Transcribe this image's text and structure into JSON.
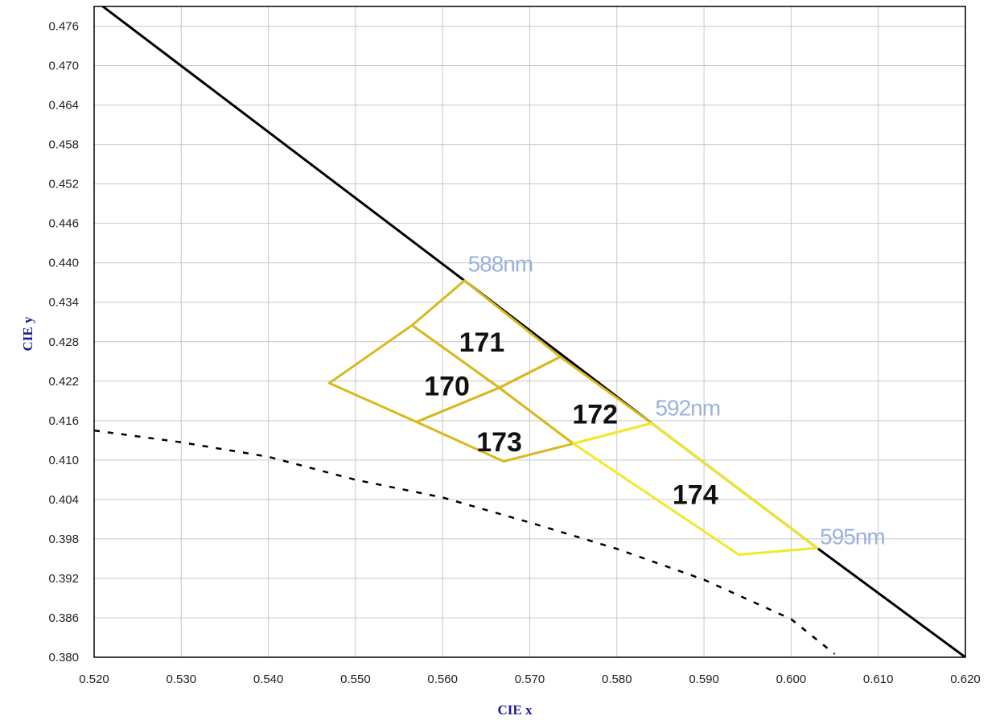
{
  "chart_data": {
    "type": "line",
    "title": "",
    "xlabel": "CIE x",
    "ylabel": "CIE y",
    "xlim": [
      0.52,
      0.62
    ],
    "ylim": [
      0.38,
      0.479
    ],
    "x_ticks": [
      "0.520",
      "0.530",
      "0.540",
      "0.550",
      "0.560",
      "0.570",
      "0.580",
      "0.590",
      "0.600",
      "0.610",
      "0.620"
    ],
    "y_ticks": [
      "0.380",
      "0.386",
      "0.392",
      "0.398",
      "0.404",
      "0.410",
      "0.416",
      "0.422",
      "0.428",
      "0.434",
      "0.440",
      "0.446",
      "0.452",
      "0.458",
      "0.464",
      "0.470",
      "0.476"
    ],
    "grid": true,
    "colors": {
      "locus": "#000000",
      "planckian": "#000000",
      "region_dark": "#d9b91e",
      "region_light": "#f0ea2a",
      "wavelength_label": "#9ab3de",
      "axis_title": "#1a1aa0"
    },
    "series": [
      {
        "name": "spectral locus",
        "style": "solid",
        "points": [
          [
            0.5205,
            0.4795
          ],
          [
            0.5625,
            0.4373
          ],
          [
            0.584,
            0.4156
          ],
          [
            0.603,
            0.3966
          ],
          [
            0.62,
            0.38
          ]
        ]
      },
      {
        "name": "planckian locus",
        "style": "dashed",
        "points": [
          [
            0.52,
            0.4145
          ],
          [
            0.53,
            0.4127
          ],
          [
            0.54,
            0.4105
          ],
          [
            0.55,
            0.407
          ],
          [
            0.56,
            0.4043
          ],
          [
            0.57,
            0.4005
          ],
          [
            0.58,
            0.3965
          ],
          [
            0.59,
            0.3918
          ],
          [
            0.6,
            0.3858
          ],
          [
            0.605,
            0.3805
          ]
        ]
      }
    ],
    "regions": [
      {
        "label": "170",
        "tone": "dark",
        "points": [
          [
            0.547,
            0.4217
          ],
          [
            0.5565,
            0.4305
          ],
          [
            0.5665,
            0.421
          ],
          [
            0.557,
            0.4158
          ]
        ],
        "label_at": [
          0.5605,
          0.4213
        ]
      },
      {
        "label": "171",
        "tone": "dark",
        "points": [
          [
            0.5565,
            0.4305
          ],
          [
            0.5625,
            0.4373
          ],
          [
            0.5735,
            0.4257
          ],
          [
            0.5665,
            0.421
          ]
        ],
        "label_at": [
          0.5645,
          0.428
        ]
      },
      {
        "label": "172",
        "tone": "dark",
        "points": [
          [
            0.5665,
            0.421
          ],
          [
            0.5735,
            0.4257
          ],
          [
            0.584,
            0.4156
          ],
          [
            0.575,
            0.4125
          ]
        ],
        "label_at": [
          0.5775,
          0.417
        ]
      },
      {
        "label": "173",
        "tone": "dark",
        "points": [
          [
            0.557,
            0.4158
          ],
          [
            0.5665,
            0.421
          ],
          [
            0.575,
            0.4125
          ],
          [
            0.567,
            0.4098
          ]
        ],
        "label_at": [
          0.5665,
          0.4128
        ]
      },
      {
        "label": "174",
        "tone": "light",
        "points": [
          [
            0.575,
            0.4125
          ],
          [
            0.584,
            0.4156
          ],
          [
            0.603,
            0.3966
          ],
          [
            0.594,
            0.3956
          ]
        ],
        "label_at": [
          0.589,
          0.4048
        ]
      }
    ],
    "annotations": [
      {
        "text": "588nm",
        "x": 0.5629,
        "y": 0.4387
      },
      {
        "text": "592nm",
        "x": 0.5844,
        "y": 0.4168
      },
      {
        "text": "595nm",
        "x": 0.6033,
        "y": 0.3972
      }
    ]
  }
}
